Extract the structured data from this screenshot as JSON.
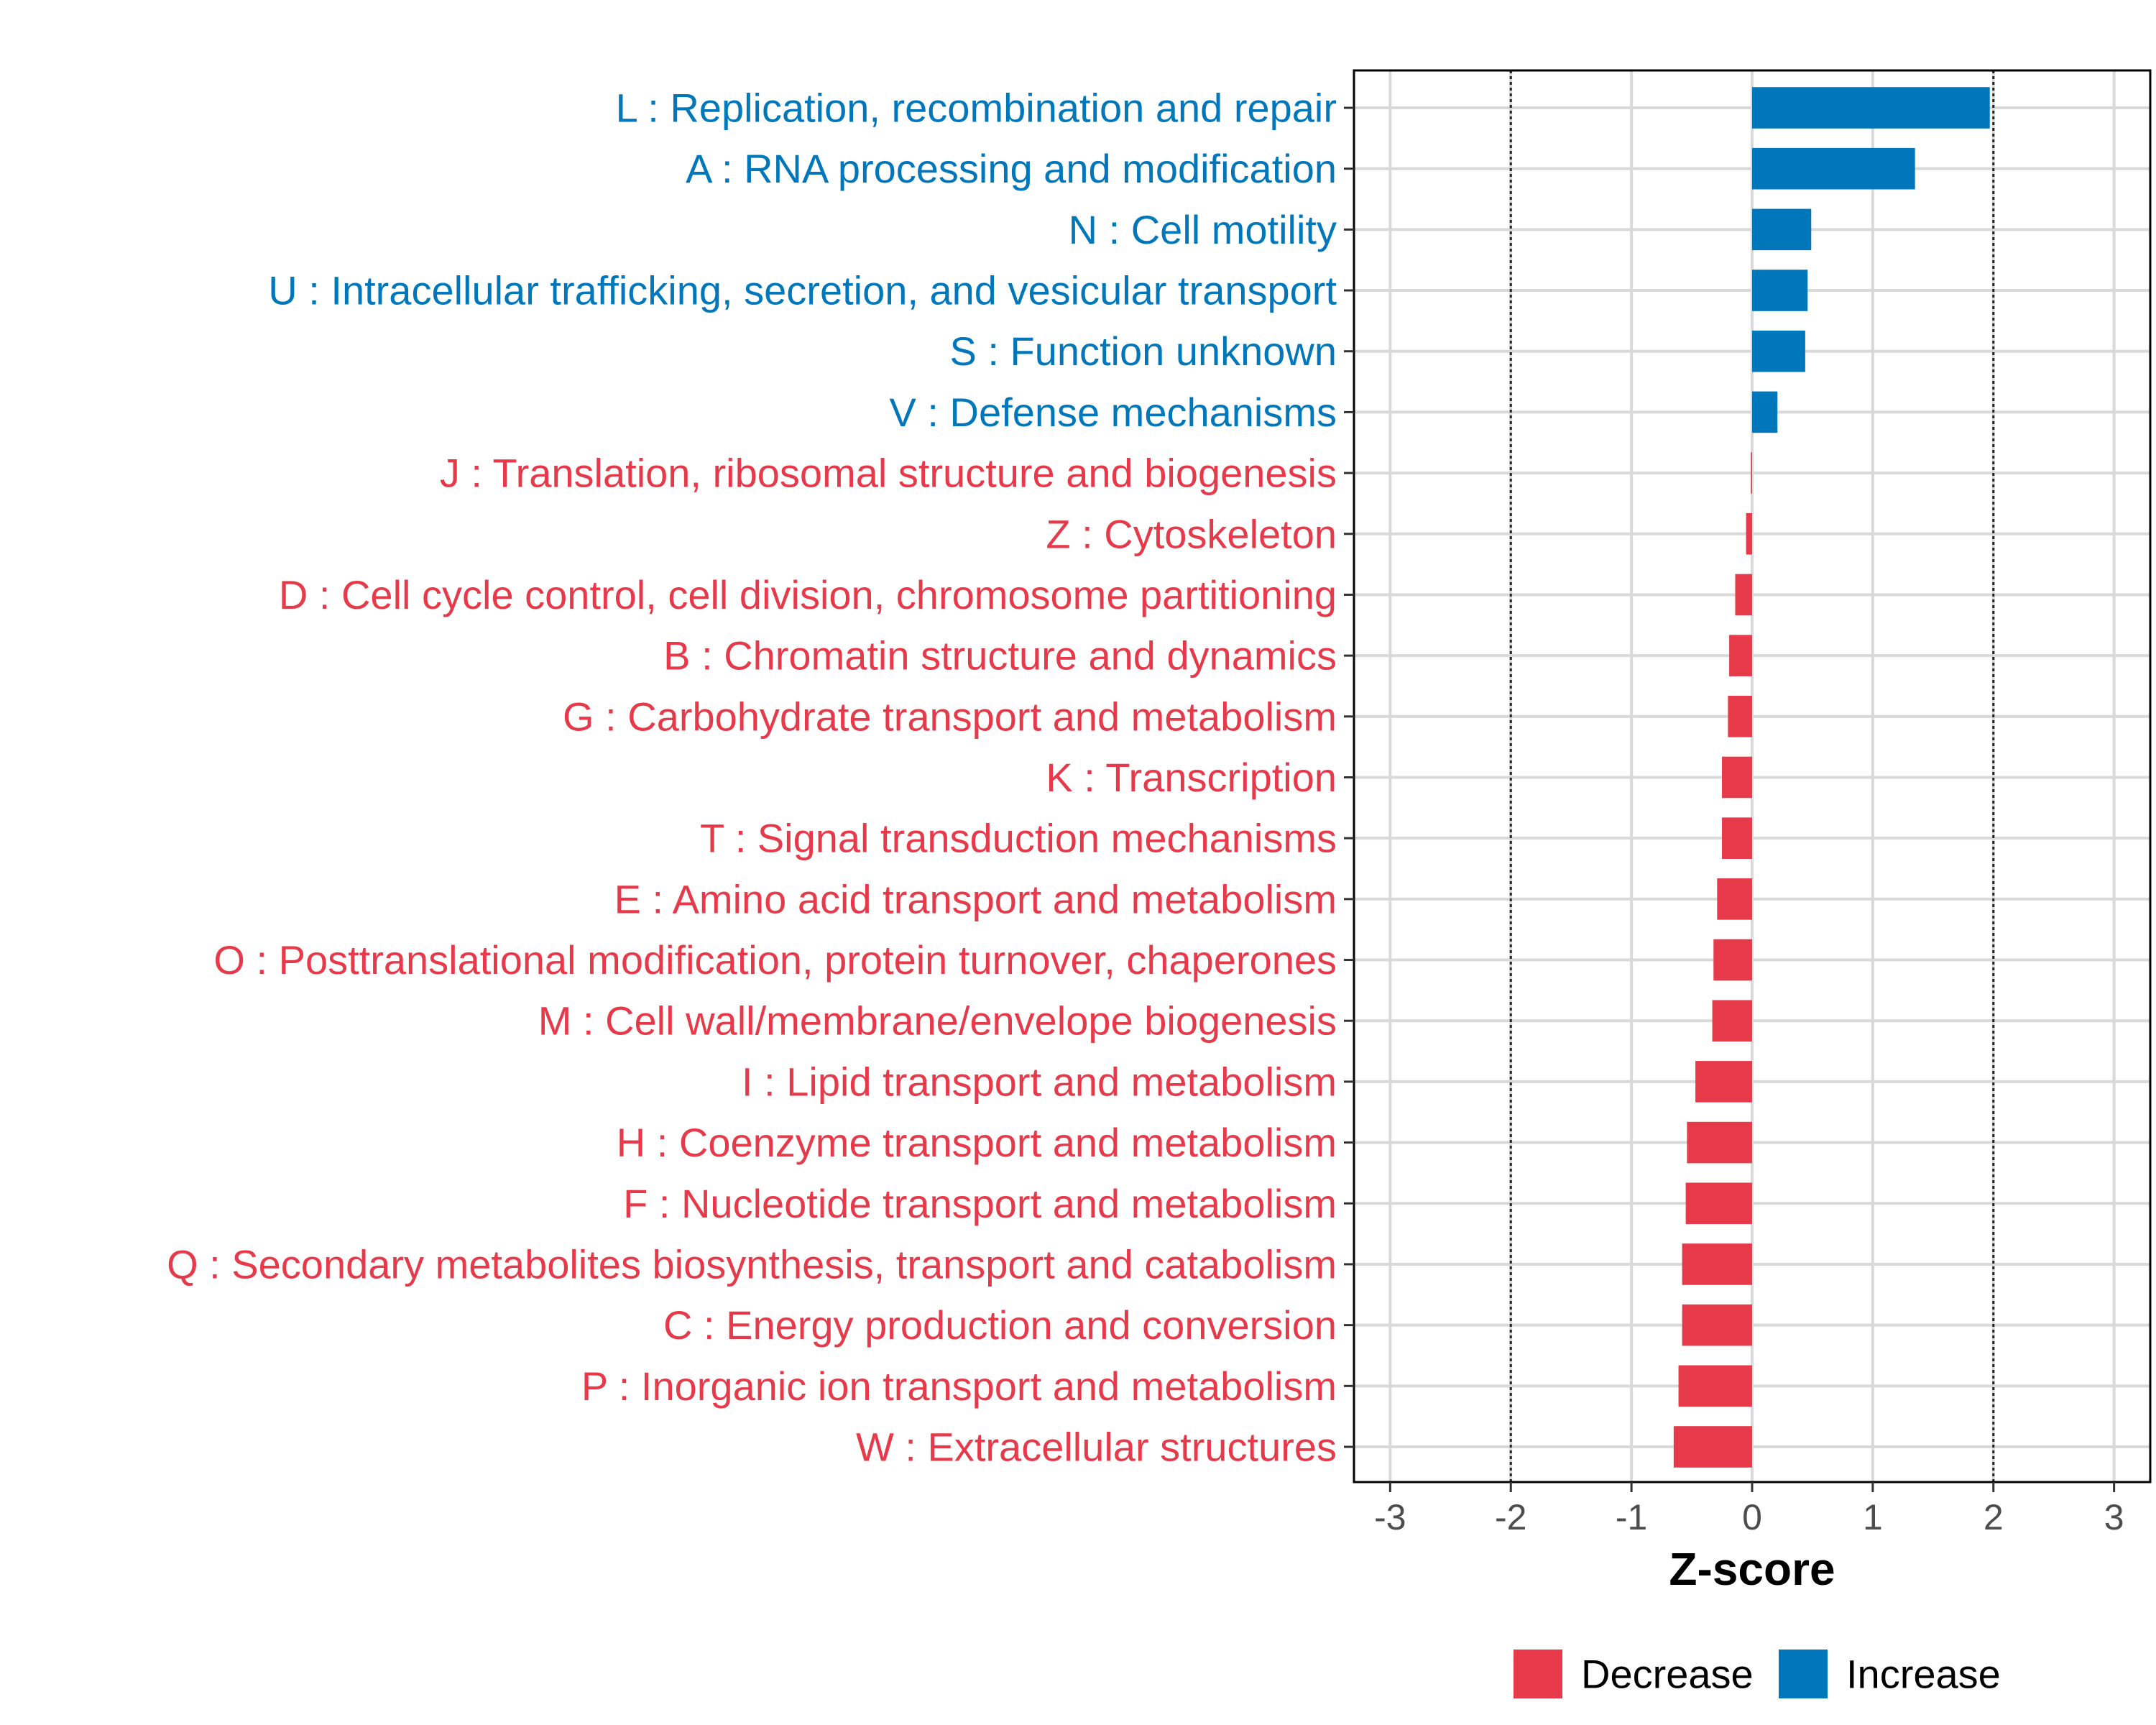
{
  "chart_data": {
    "type": "bar",
    "orientation": "horizontal",
    "title": "",
    "xlabel": "Z-score",
    "ylabel": "",
    "xlim": [
      -3.3,
      3.3
    ],
    "xticks": [
      "-3",
      "-2",
      "-1",
      "0",
      "1",
      "2",
      "3"
    ],
    "threshold_lines": [
      -2,
      2
    ],
    "grid": true,
    "colors": {
      "Increase": "#0077bb",
      "Decrease": "#e63a4a"
    },
    "legend": {
      "placement": "bottom",
      "entries": [
        {
          "name": "Decrease",
          "color": "#e63a4a"
        },
        {
          "name": "Increase",
          "color": "#0077bb"
        }
      ]
    },
    "categories": [
      "L : Replication, recombination and repair",
      "A : RNA processing and modification",
      "N : Cell motility",
      "U : Intracellular trafficking, secretion, and vesicular transport",
      "S : Function unknown",
      "V : Defense mechanisms",
      "J : Translation, ribosomal structure and biogenesis",
      "Z : Cytoskeleton",
      "D : Cell cycle control, cell division, chromosome partitioning",
      "B : Chromatin structure and dynamics",
      "G : Carbohydrate transport and metabolism",
      "K : Transcription",
      "T : Signal transduction mechanisms",
      "E : Amino acid transport and metabolism",
      "O : Posttranslational modification, protein turnover, chaperones",
      "M : Cell wall/membrane/envelope biogenesis",
      "I : Lipid transport and metabolism",
      "H : Coenzyme transport and metabolism",
      "F : Nucleotide transport and metabolism",
      "Q : Secondary metabolites biosynthesis, transport and catabolism",
      "C : Energy production and conversion",
      "P : Inorganic ion transport and metabolism",
      "W : Extracellular structures"
    ],
    "values": [
      1.97,
      1.35,
      0.49,
      0.46,
      0.44,
      0.21,
      -0.01,
      -0.05,
      -0.14,
      -0.19,
      -0.2,
      -0.25,
      -0.25,
      -0.29,
      -0.32,
      -0.33,
      -0.47,
      -0.54,
      -0.55,
      -0.58,
      -0.58,
      -0.61,
      -0.65
    ],
    "groups": [
      "Increase",
      "Increase",
      "Increase",
      "Increase",
      "Increase",
      "Increase",
      "Decrease",
      "Decrease",
      "Decrease",
      "Decrease",
      "Decrease",
      "Decrease",
      "Decrease",
      "Decrease",
      "Decrease",
      "Decrease",
      "Decrease",
      "Decrease",
      "Decrease",
      "Decrease",
      "Decrease",
      "Decrease",
      "Decrease"
    ]
  }
}
